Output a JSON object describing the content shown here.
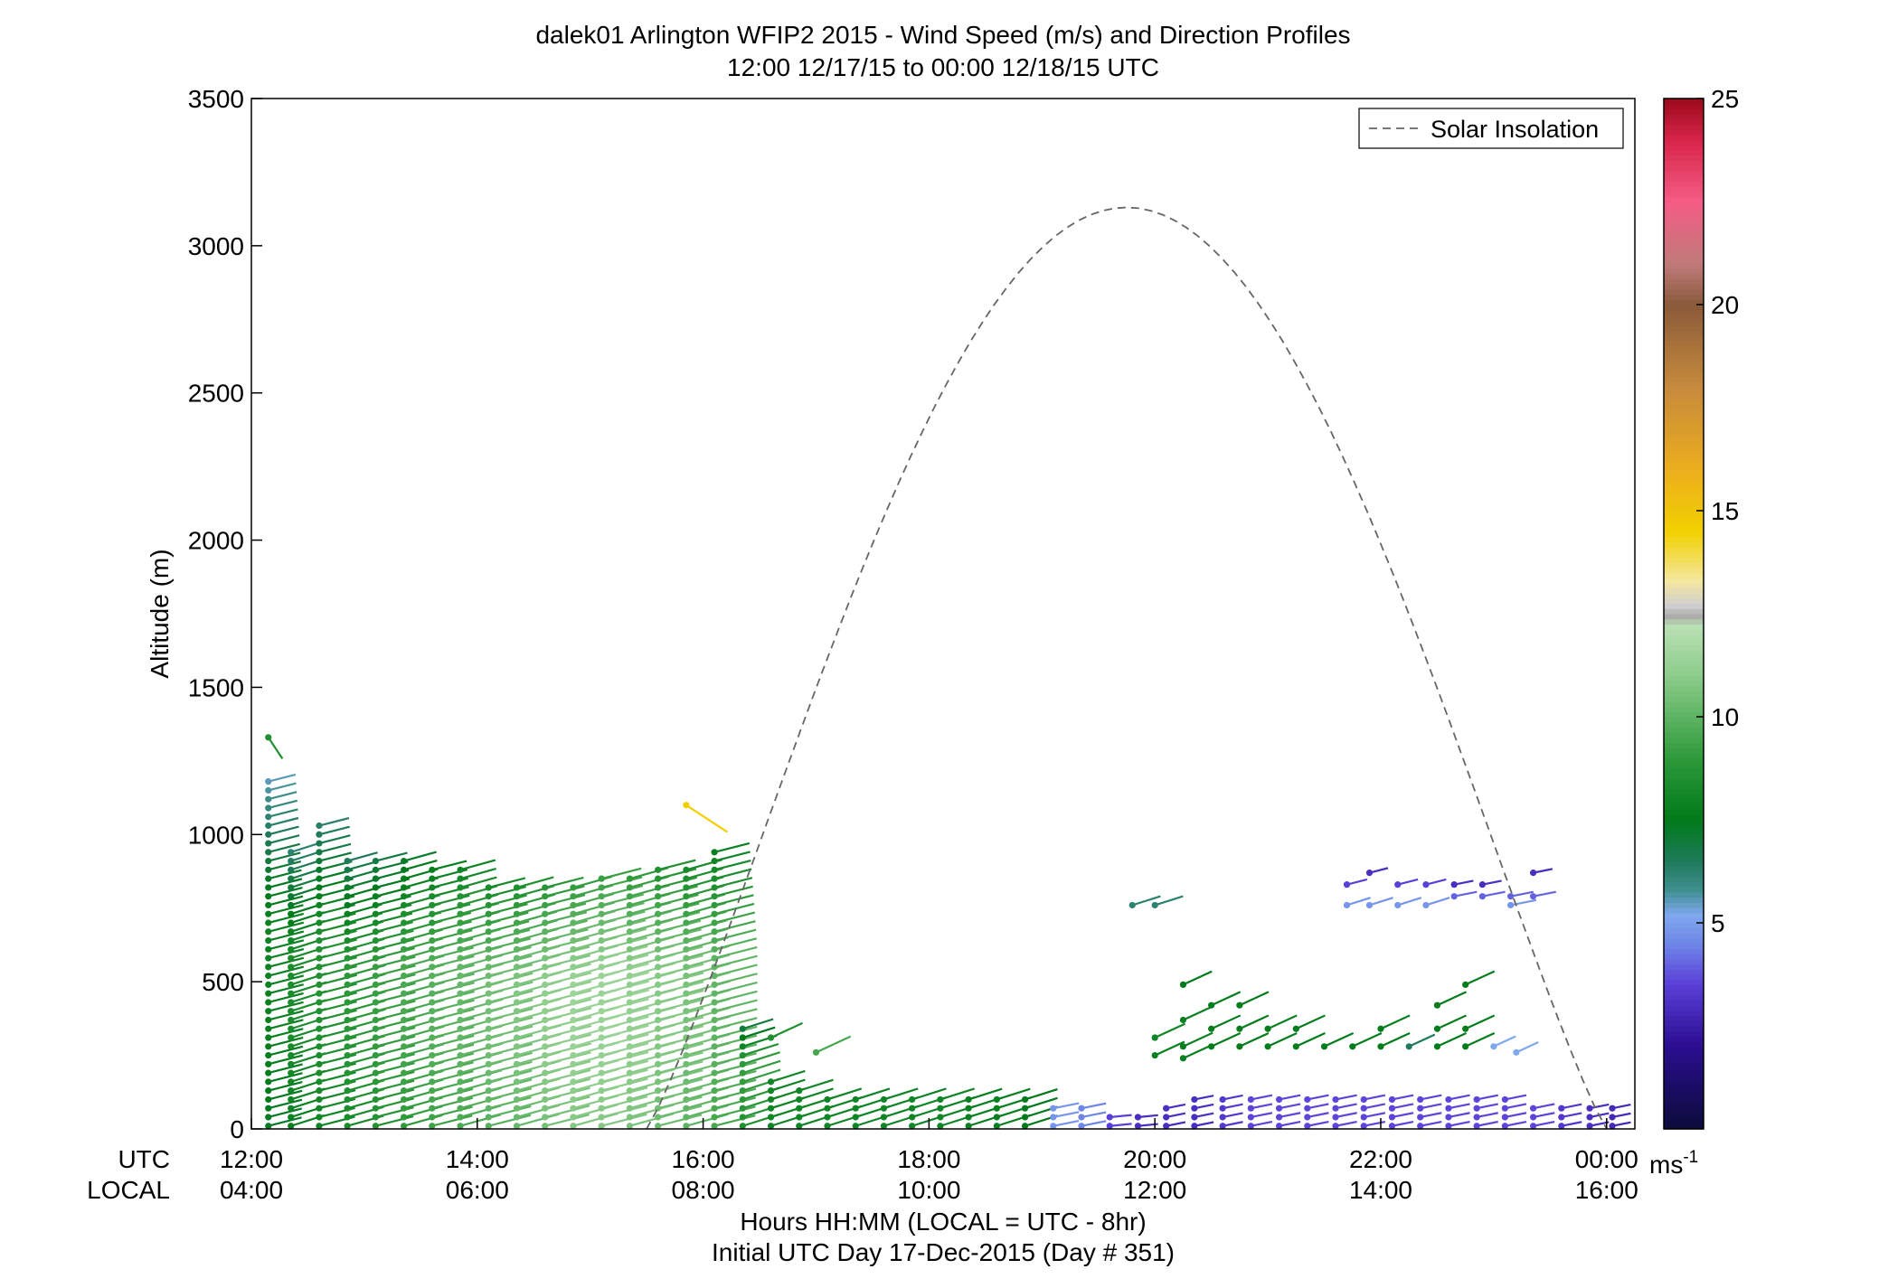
{
  "chart_data": {
    "type": "scatter",
    "title_line1": "dalek01 Arlington WFIP2 2015 - Wind Speed (m/s) and Direction Profiles",
    "title_line2": "12:00 12/17/15 to 00:00 12/18/15  UTC",
    "ylabel": "Altitude (m)",
    "xlabel_line1": "Hours HH:MM  (LOCAL = UTC - 8hr)",
    "xlabel_line2": "Initial UTC Day 17-Dec-2015 (Day # 351)",
    "utc_row_label": "UTC",
    "local_row_label": "LOCAL",
    "xlim": [
      0,
      12.25
    ],
    "ylim": [
      0,
      3500
    ],
    "x_ticks": [
      0,
      2,
      4,
      6,
      8,
      10,
      12
    ],
    "x_tick_labels_utc": [
      "12:00",
      "14:00",
      "16:00",
      "18:00",
      "20:00",
      "22:00",
      "00:00"
    ],
    "x_tick_labels_local": [
      "04:00",
      "06:00",
      "08:00",
      "10:00",
      "12:00",
      "14:00",
      "16:00"
    ],
    "y_ticks": [
      0,
      500,
      1000,
      1500,
      2000,
      2500,
      3000,
      3500
    ],
    "y_tick_labels": [
      "0",
      "500",
      "1000",
      "1500",
      "2000",
      "2500",
      "3000",
      "3500"
    ],
    "legend": {
      "label": "Solar Insolation",
      "placement": "top-right"
    },
    "solar_insolation": {
      "start_hour": 3.5,
      "end_hour": 12.0,
      "peak_hour": 7.75,
      "peak_altitude": 3130
    },
    "colorbar": {
      "range": [
        0,
        25
      ],
      "ticks": [
        5,
        10,
        15,
        20,
        25
      ],
      "tick_labels": [
        "5",
        "10",
        "15",
        "20",
        "25"
      ],
      "unit_base": "ms",
      "unit_exp": "-1",
      "stops": [
        {
          "v": 0,
          "c": "#0b0c3a"
        },
        {
          "v": 2,
          "c": "#2a0d8f"
        },
        {
          "v": 3.5,
          "c": "#5a3fd8"
        },
        {
          "v": 4.5,
          "c": "#6f86e8"
        },
        {
          "v": 5.2,
          "c": "#7fa8ee"
        },
        {
          "v": 5.8,
          "c": "#3f8f8f"
        },
        {
          "v": 6.5,
          "c": "#1f7a5a"
        },
        {
          "v": 7.5,
          "c": "#007a1a"
        },
        {
          "v": 9,
          "c": "#2e9a3a"
        },
        {
          "v": 11,
          "c": "#8ccc8a"
        },
        {
          "v": 12.2,
          "c": "#b9e0b4"
        },
        {
          "v": 12.45,
          "c": "#aaaaaa"
        },
        {
          "v": 12.7,
          "c": "#cfcfcf"
        },
        {
          "v": 13.3,
          "c": "#f4e8a0"
        },
        {
          "v": 14.5,
          "c": "#f2d000"
        },
        {
          "v": 16,
          "c": "#ecae1e"
        },
        {
          "v": 18,
          "c": "#c68a3c"
        },
        {
          "v": 20,
          "c": "#8a5a3a"
        },
        {
          "v": 21,
          "c": "#c07a7a"
        },
        {
          "v": 22.5,
          "c": "#f55c85"
        },
        {
          "v": 24,
          "c": "#d8254a"
        },
        {
          "v": 25,
          "c": "#9a0a1a"
        }
      ]
    },
    "profiles": [
      {
        "t": 0.15,
        "h0": 10,
        "h1": 1180,
        "dh": 30,
        "spd": 7.3,
        "dir": 245,
        "top_spd": 8.5,
        "top_alt": 1330,
        "top_dir": 340
      },
      {
        "t": 0.35,
        "h0": 10,
        "h1": 960,
        "dh": 30,
        "spd": 7.8,
        "dir": 240
      },
      {
        "t": 0.6,
        "h0": 10,
        "h1": 1040,
        "dh": 30,
        "spd": 8.0,
        "dir": 245
      },
      {
        "t": 0.85,
        "h0": 10,
        "h1": 910,
        "dh": 30,
        "spd": 8.3,
        "dir": 243
      },
      {
        "t": 1.1,
        "h0": 10,
        "h1": 910,
        "dh": 30,
        "spd": 8.6,
        "dir": 245
      },
      {
        "t": 1.35,
        "h0": 10,
        "h1": 910,
        "dh": 30,
        "spd": 9.0,
        "dir": 243
      },
      {
        "t": 1.6,
        "h0": 10,
        "h1": 900,
        "dh": 30,
        "spd": 9.3,
        "dir": 245
      },
      {
        "t": 1.85,
        "h0": 10,
        "h1": 900,
        "dh": 30,
        "spd": 9.6,
        "dir": 243
      },
      {
        "t": 2.1,
        "h0": 10,
        "h1": 840,
        "dh": 30,
        "spd": 9.9,
        "dir": 245
      },
      {
        "t": 2.35,
        "h0": 10,
        "h1": 830,
        "dh": 30,
        "spd": 10.2,
        "dir": 243
      },
      {
        "t": 2.6,
        "h0": 10,
        "h1": 830,
        "dh": 30,
        "spd": 10.5,
        "dir": 245
      },
      {
        "t": 2.85,
        "h0": 10,
        "h1": 830,
        "dh": 30,
        "spd": 10.8,
        "dir": 243
      },
      {
        "t": 3.1,
        "h0": 10,
        "h1": 870,
        "dh": 30,
        "spd": 10.8,
        "dir": 245
      },
      {
        "t": 3.35,
        "h0": 10,
        "h1": 870,
        "dh": 30,
        "spd": 10.6,
        "dir": 243
      },
      {
        "t": 3.6,
        "h0": 10,
        "h1": 880,
        "dh": 30,
        "spd": 10.3,
        "dir": 245
      },
      {
        "t": 3.85,
        "h0": 10,
        "h1": 880,
        "dh": 30,
        "spd": 10.0,
        "dir": 243,
        "top_spd": 14.5,
        "top_alt": 1100,
        "top_dir": 320
      },
      {
        "t": 4.1,
        "h0": 10,
        "h1": 950,
        "dh": 30,
        "spd": 9.5,
        "dir": 245
      },
      {
        "t": 4.35,
        "h0": 10,
        "h1": 350,
        "dh": 30,
        "spd": 8.5,
        "dir": 240
      },
      {
        "t": 4.6,
        "h0": 10,
        "h1": 170,
        "dh": 30,
        "spd": 8.0,
        "dir": 240
      },
      {
        "t": 4.85,
        "h0": 10,
        "h1": 140,
        "dh": 30,
        "spd": 8.0,
        "dir": 240
      },
      {
        "t": 5.1,
        "h0": 10,
        "h1": 110,
        "dh": 30,
        "spd": 8.0,
        "dir": 240
      },
      {
        "t": 5.35,
        "h0": 10,
        "h1": 110,
        "dh": 30,
        "spd": 8.0,
        "dir": 240
      },
      {
        "t": 5.6,
        "h0": 10,
        "h1": 110,
        "dh": 30,
        "spd": 8.0,
        "dir": 240
      },
      {
        "t": 5.85,
        "h0": 10,
        "h1": 110,
        "dh": 30,
        "spd": 8.0,
        "dir": 240
      },
      {
        "t": 6.1,
        "h0": 10,
        "h1": 110,
        "dh": 30,
        "spd": 8.0,
        "dir": 240
      },
      {
        "t": 6.35,
        "h0": 10,
        "h1": 110,
        "dh": 30,
        "spd": 7.8,
        "dir": 240
      },
      {
        "t": 6.6,
        "h0": 10,
        "h1": 110,
        "dh": 30,
        "spd": 7.8,
        "dir": 240
      },
      {
        "t": 6.85,
        "h0": 10,
        "h1": 110,
        "dh": 30,
        "spd": 7.5,
        "dir": 240
      },
      {
        "t": 7.1,
        "h0": 10,
        "h1": 70,
        "dh": 30,
        "spd": 4.8,
        "dir": 250
      },
      {
        "t": 7.35,
        "h0": 10,
        "h1": 70,
        "dh": 30,
        "spd": 4.5,
        "dir": 250
      },
      {
        "t": 7.6,
        "h0": 10,
        "h1": 40,
        "dh": 30,
        "spd": 3.5,
        "dir": 260
      },
      {
        "t": 7.85,
        "h0": 10,
        "h1": 40,
        "dh": 30,
        "spd": 3.0,
        "dir": 260
      },
      {
        "t": 8.1,
        "h0": 10,
        "h1": 70,
        "dh": 30,
        "spd": 3.0,
        "dir": 250
      },
      {
        "t": 8.35,
        "h0": 10,
        "h1": 110,
        "dh": 30,
        "spd": 3.0,
        "dir": 250
      },
      {
        "t": 8.6,
        "h0": 10,
        "h1": 110,
        "dh": 30,
        "spd": 3.3,
        "dir": 250
      },
      {
        "t": 8.85,
        "h0": 10,
        "h1": 110,
        "dh": 30,
        "spd": 3.6,
        "dir": 250
      },
      {
        "t": 9.1,
        "h0": 10,
        "h1": 110,
        "dh": 30,
        "spd": 3.6,
        "dir": 250
      },
      {
        "t": 9.35,
        "h0": 10,
        "h1": 110,
        "dh": 30,
        "spd": 3.6,
        "dir": 250
      },
      {
        "t": 9.6,
        "h0": 10,
        "h1": 110,
        "dh": 30,
        "spd": 3.6,
        "dir": 250
      },
      {
        "t": 9.85,
        "h0": 10,
        "h1": 110,
        "dh": 30,
        "spd": 3.6,
        "dir": 250
      },
      {
        "t": 10.1,
        "h0": 10,
        "h1": 110,
        "dh": 30,
        "spd": 3.6,
        "dir": 250
      },
      {
        "t": 10.35,
        "h0": 10,
        "h1": 110,
        "dh": 30,
        "spd": 3.6,
        "dir": 250
      },
      {
        "t": 10.6,
        "h0": 10,
        "h1": 110,
        "dh": 30,
        "spd": 3.6,
        "dir": 250
      },
      {
        "t": 10.85,
        "h0": 10,
        "h1": 110,
        "dh": 30,
        "spd": 3.6,
        "dir": 250
      },
      {
        "t": 11.1,
        "h0": 10,
        "h1": 110,
        "dh": 30,
        "spd": 3.6,
        "dir": 250
      },
      {
        "t": 11.35,
        "h0": 10,
        "h1": 80,
        "dh": 30,
        "spd": 3.6,
        "dir": 250
      },
      {
        "t": 11.6,
        "h0": 10,
        "h1": 80,
        "dh": 30,
        "spd": 3.3,
        "dir": 250
      },
      {
        "t": 11.85,
        "h0": 10,
        "h1": 80,
        "dh": 30,
        "spd": 3.0,
        "dir": 250
      },
      {
        "t": 12.05,
        "h0": 10,
        "h1": 80,
        "dh": 30,
        "spd": 2.8,
        "dir": 250
      }
    ],
    "extra_points": [
      {
        "t": 8.0,
        "alt": 310,
        "spd": 8.0,
        "dir": 230
      },
      {
        "t": 8.0,
        "alt": 250,
        "spd": 7.8,
        "dir": 230
      },
      {
        "t": 8.25,
        "alt": 490,
        "spd": 7.5,
        "dir": 230
      },
      {
        "t": 8.25,
        "alt": 370,
        "spd": 7.8,
        "dir": 230
      },
      {
        "t": 8.25,
        "alt": 280,
        "spd": 7.8,
        "dir": 230
      },
      {
        "t": 8.25,
        "alt": 240,
        "spd": 7.8,
        "dir": 230
      },
      {
        "t": 8.5,
        "alt": 420,
        "spd": 7.6,
        "dir": 230
      },
      {
        "t": 8.5,
        "alt": 340,
        "spd": 7.6,
        "dir": 230
      },
      {
        "t": 8.5,
        "alt": 280,
        "spd": 7.6,
        "dir": 230
      },
      {
        "t": 8.75,
        "alt": 420,
        "spd": 7.6,
        "dir": 230
      },
      {
        "t": 8.75,
        "alt": 340,
        "spd": 7.6,
        "dir": 230
      },
      {
        "t": 8.75,
        "alt": 280,
        "spd": 7.6,
        "dir": 230
      },
      {
        "t": 9.0,
        "alt": 340,
        "spd": 7.6,
        "dir": 230
      },
      {
        "t": 9.0,
        "alt": 280,
        "spd": 7.6,
        "dir": 230
      },
      {
        "t": 9.25,
        "alt": 340,
        "spd": 7.6,
        "dir": 230
      },
      {
        "t": 9.25,
        "alt": 280,
        "spd": 7.6,
        "dir": 230
      },
      {
        "t": 9.5,
        "alt": 280,
        "spd": 7.6,
        "dir": 230
      },
      {
        "t": 9.75,
        "alt": 280,
        "spd": 7.6,
        "dir": 230
      },
      {
        "t": 10.0,
        "alt": 340,
        "spd": 7.6,
        "dir": 230
      },
      {
        "t": 10.0,
        "alt": 280,
        "spd": 7.6,
        "dir": 230
      },
      {
        "t": 10.25,
        "alt": 280,
        "spd": 6.5,
        "dir": 230
      },
      {
        "t": 10.5,
        "alt": 420,
        "spd": 7.6,
        "dir": 230
      },
      {
        "t": 10.5,
        "alt": 340,
        "spd": 7.6,
        "dir": 230
      },
      {
        "t": 10.5,
        "alt": 280,
        "spd": 7.6,
        "dir": 230
      },
      {
        "t": 10.75,
        "alt": 490,
        "spd": 7.6,
        "dir": 230
      },
      {
        "t": 10.75,
        "alt": 340,
        "spd": 7.6,
        "dir": 230
      },
      {
        "t": 10.75,
        "alt": 280,
        "spd": 7.6,
        "dir": 230
      },
      {
        "t": 11.0,
        "alt": 280,
        "spd": 5.2,
        "dir": 230
      },
      {
        "t": 11.2,
        "alt": 260,
        "spd": 5.2,
        "dir": 230
      },
      {
        "t": 7.8,
        "alt": 760,
        "spd": 6.2,
        "dir": 240
      },
      {
        "t": 8.0,
        "alt": 760,
        "spd": 6.2,
        "dir": 240
      },
      {
        "t": 5.0,
        "alt": 260,
        "spd": 9.5,
        "dir": 230
      },
      {
        "t": 4.6,
        "alt": 310,
        "spd": 8.5,
        "dir": 230
      },
      {
        "t": 9.7,
        "alt": 830,
        "spd": 3.5,
        "dir": 245
      },
      {
        "t": 9.7,
        "alt": 760,
        "spd": 4.8,
        "dir": 240
      },
      {
        "t": 9.9,
        "alt": 870,
        "spd": 3.0,
        "dir": 245
      },
      {
        "t": 9.9,
        "alt": 760,
        "spd": 4.8,
        "dir": 240
      },
      {
        "t": 10.15,
        "alt": 830,
        "spd": 3.5,
        "dir": 245
      },
      {
        "t": 10.15,
        "alt": 760,
        "spd": 4.8,
        "dir": 240
      },
      {
        "t": 10.4,
        "alt": 830,
        "spd": 3.5,
        "dir": 245
      },
      {
        "t": 10.4,
        "alt": 760,
        "spd": 4.8,
        "dir": 240
      },
      {
        "t": 10.65,
        "alt": 830,
        "spd": 3.0,
        "dir": 250
      },
      {
        "t": 10.65,
        "alt": 790,
        "spd": 4.0,
        "dir": 250
      },
      {
        "t": 10.9,
        "alt": 830,
        "spd": 3.0,
        "dir": 250
      },
      {
        "t": 10.9,
        "alt": 790,
        "spd": 4.0,
        "dir": 250
      },
      {
        "t": 11.15,
        "alt": 790,
        "spd": 4.0,
        "dir": 250
      },
      {
        "t": 11.15,
        "alt": 760,
        "spd": 4.8,
        "dir": 250
      },
      {
        "t": 11.35,
        "alt": 870,
        "spd": 3.0,
        "dir": 250
      },
      {
        "t": 11.35,
        "alt": 790,
        "spd": 4.0,
        "dir": 250
      }
    ]
  }
}
